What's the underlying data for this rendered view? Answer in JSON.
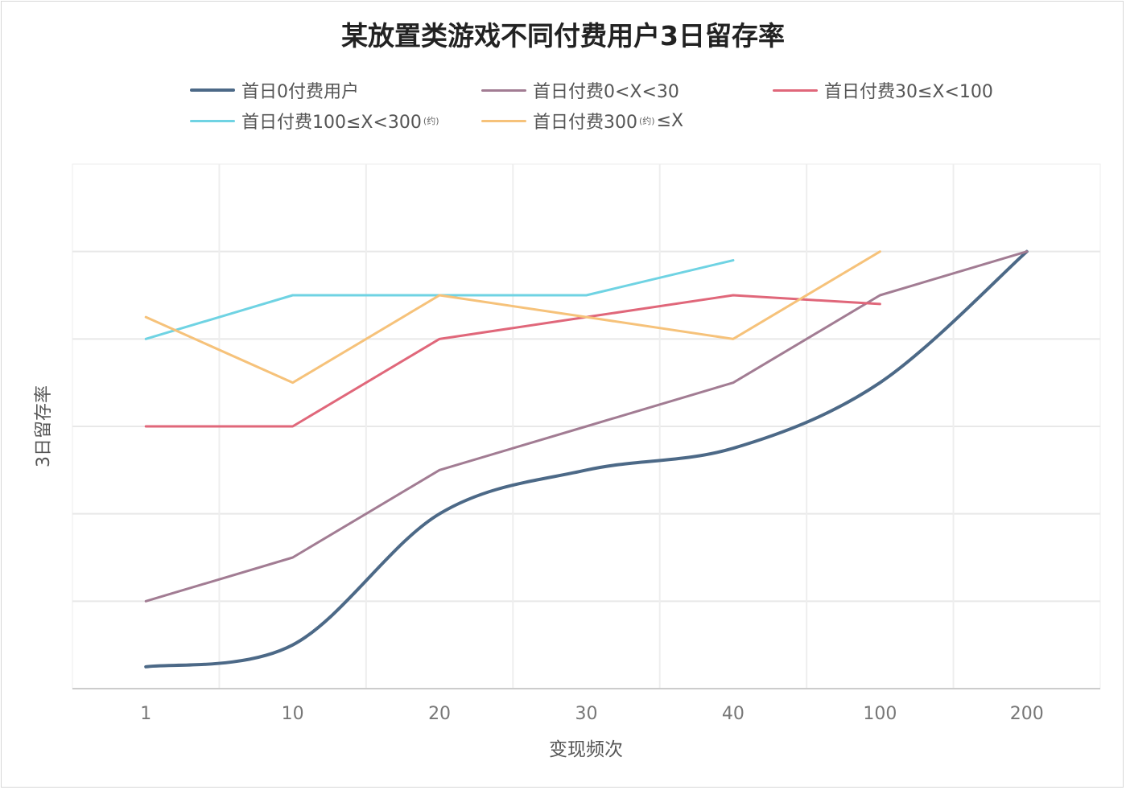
{
  "chart_data": {
    "type": "line",
    "title": "某放置类游戏不同付费用户3日留存率",
    "xlabel": "变现频次",
    "ylabel": "3日留存率",
    "categories": [
      "1",
      "10",
      "20",
      "30",
      "40",
      "100",
      "200"
    ],
    "ylim": [
      0,
      6
    ],
    "y_tick_labels_shown": false,
    "grid": true,
    "legend_placement": "top",
    "series": [
      {
        "name": "首日0付费用户",
        "note": "",
        "suffix": "",
        "color": "#4c6987",
        "smooth": true,
        "width": 4,
        "values": [
          0.25,
          0.5,
          2.0,
          2.5,
          2.75,
          3.5,
          5.0
        ]
      },
      {
        "name": "首日付费0<X<30",
        "note": "",
        "suffix": "",
        "color": "#a27c93",
        "smooth": false,
        "width": 3,
        "values": [
          1.0,
          1.5,
          2.5,
          3.0,
          3.5,
          4.5,
          5.0
        ]
      },
      {
        "name": "首日付费30≤X<100",
        "note": "",
        "suffix": "",
        "color": "#e0677a",
        "smooth": false,
        "width": 3,
        "values": [
          3.0,
          3.0,
          4.0,
          4.25,
          4.5,
          4.4,
          null
        ]
      },
      {
        "name": "首日付费100≤X<300",
        "note": "(约)",
        "suffix": "",
        "color": "#6fd3e3",
        "smooth": false,
        "width": 3,
        "values": [
          4.0,
          4.5,
          4.5,
          4.5,
          4.9,
          null,
          null
        ]
      },
      {
        "name": "首日付费300",
        "note": "(约)",
        "suffix": "≤X",
        "color": "#f6c27a",
        "smooth": false,
        "width": 3,
        "values": [
          4.25,
          3.5,
          4.5,
          4.25,
          4.0,
          5.0,
          null
        ]
      }
    ]
  }
}
